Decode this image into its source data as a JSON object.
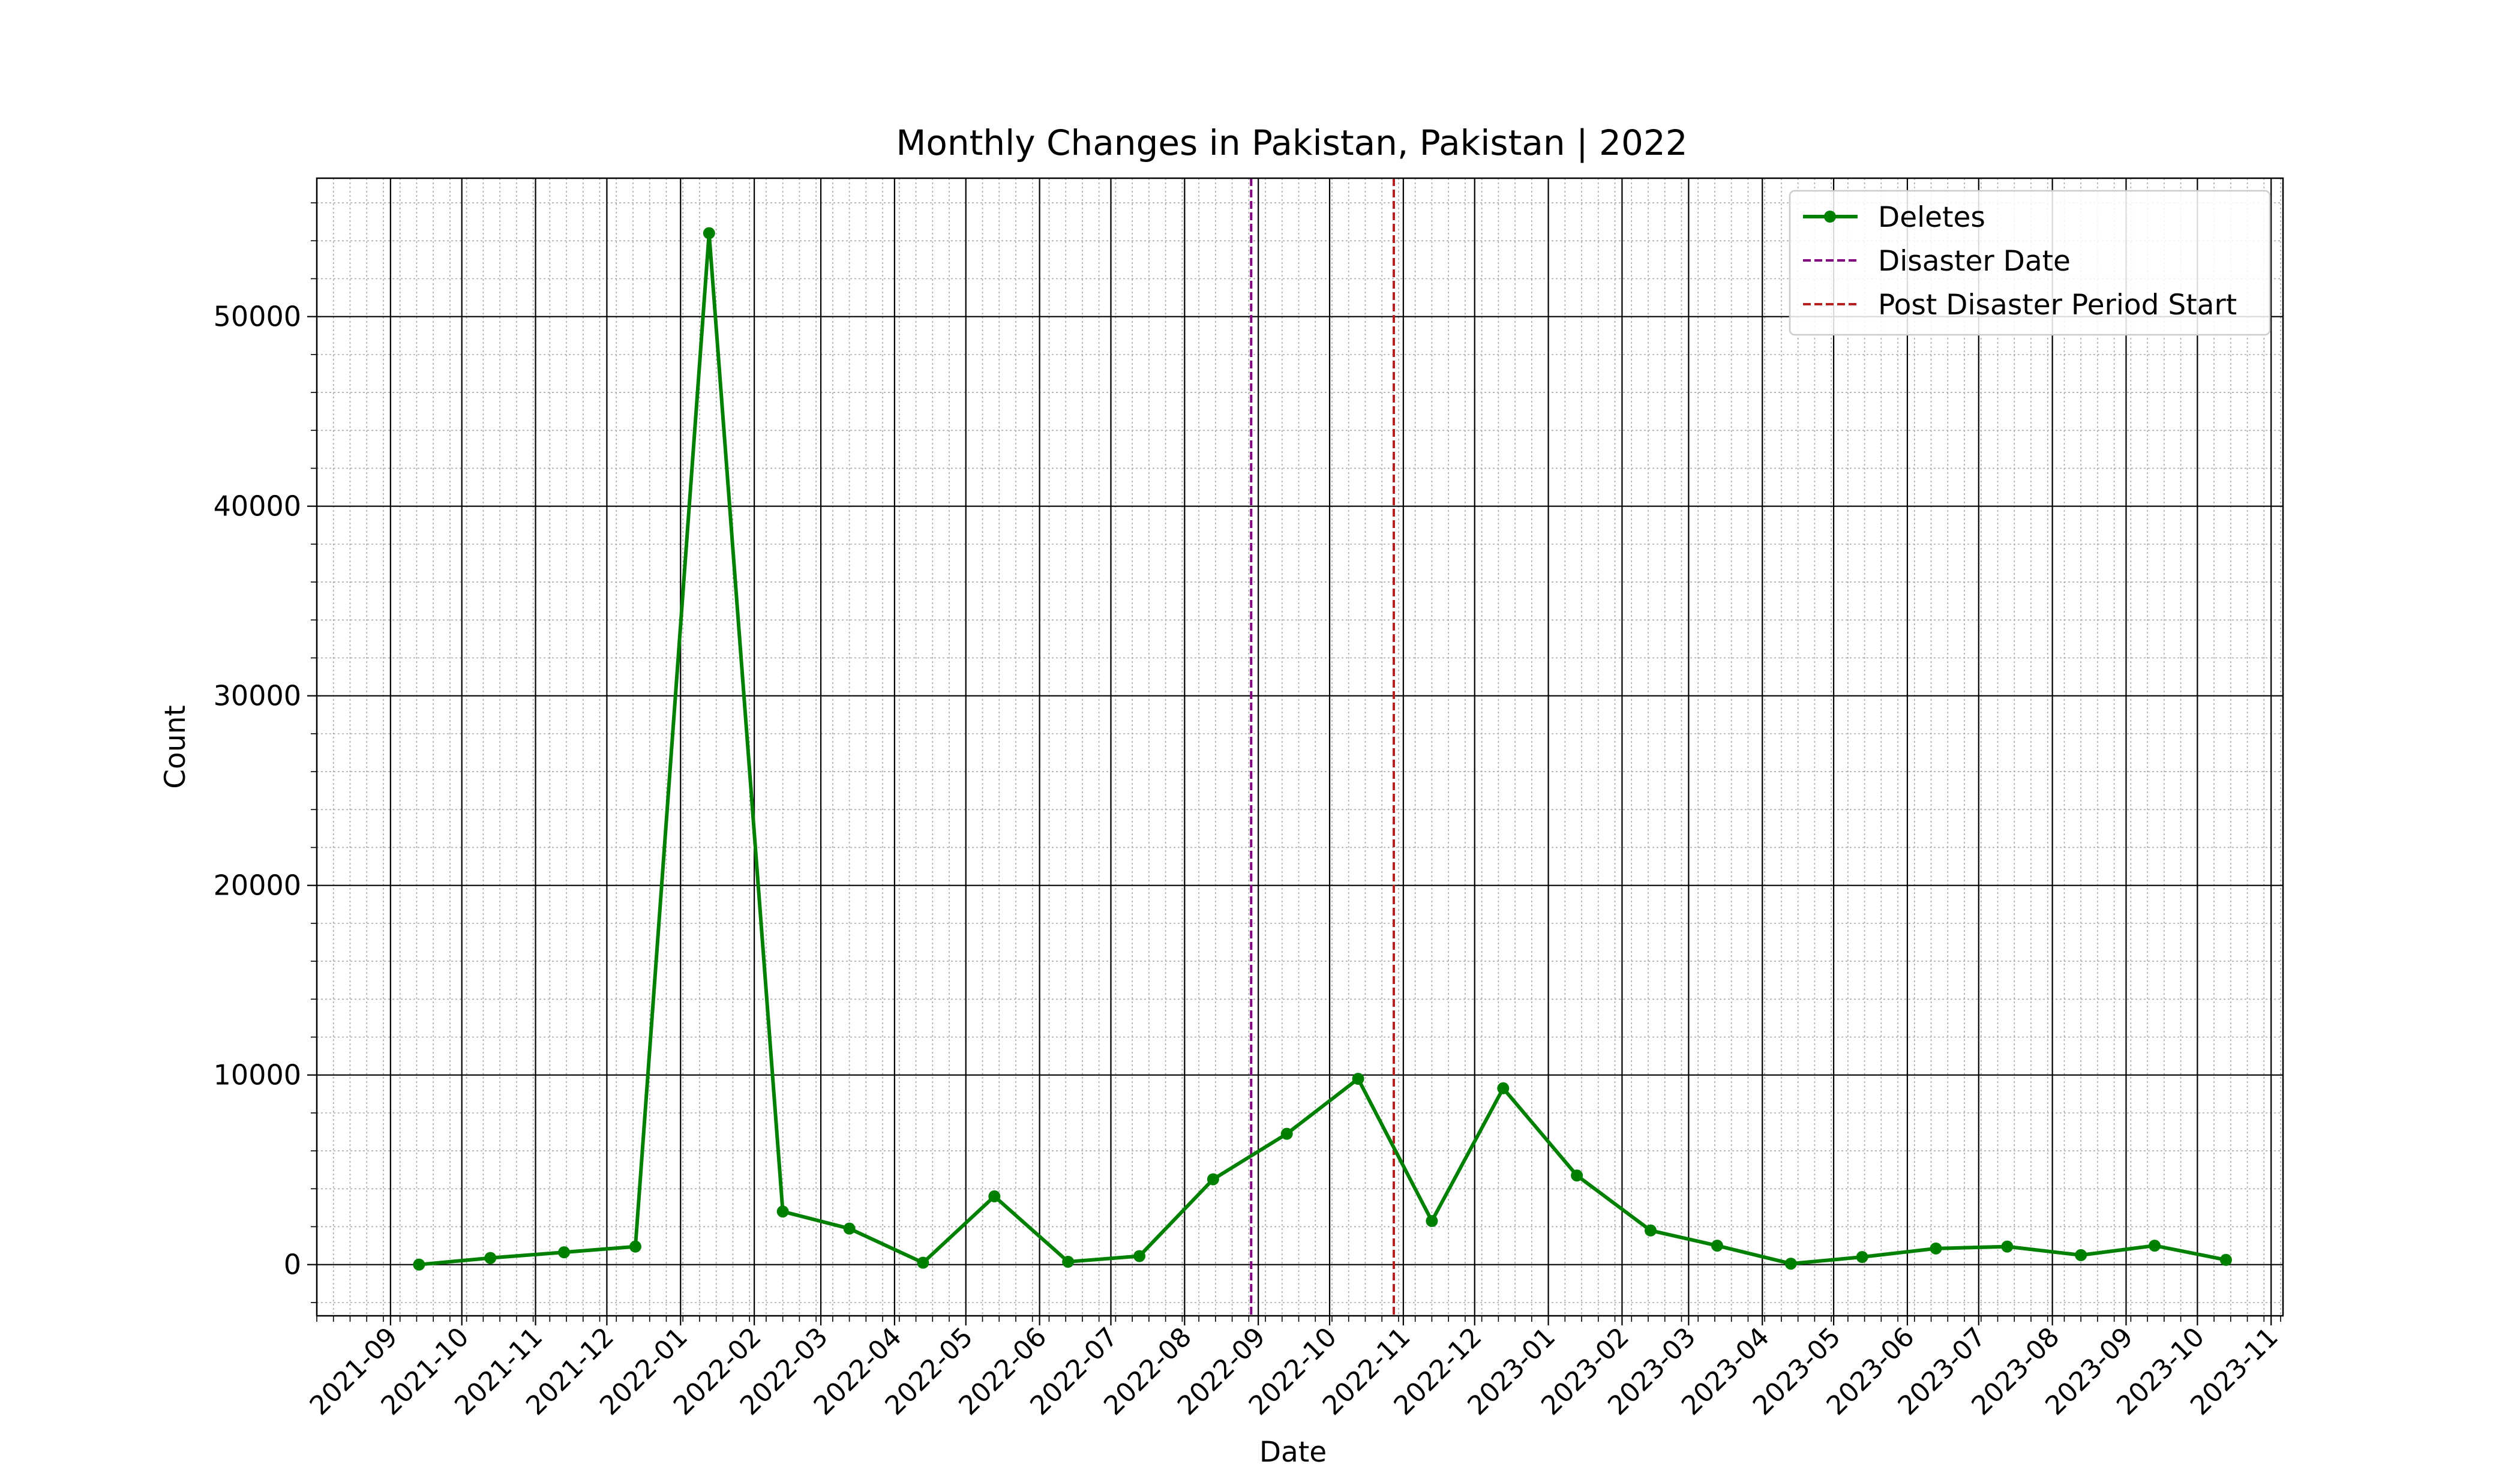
{
  "chart_data": {
    "type": "line",
    "title": "Monthly Changes in Pakistan, Pakistan | 2022",
    "xlabel": "Date",
    "ylabel": "Count",
    "x_axis_type": "date",
    "xlim": [
      "2021-08-01",
      "2023-11-06"
    ],
    "ylim": [
      -2700,
      57300
    ],
    "x_ticks": [
      "2021-09",
      "2021-10",
      "2021-11",
      "2021-12",
      "2022-01",
      "2022-02",
      "2022-03",
      "2022-04",
      "2022-05",
      "2022-06",
      "2022-07",
      "2022-08",
      "2022-09",
      "2022-10",
      "2022-11",
      "2022-12",
      "2023-01",
      "2023-02",
      "2023-03",
      "2023-04",
      "2023-05",
      "2023-06",
      "2023-07",
      "2023-08",
      "2023-09",
      "2023-10",
      "2023-11"
    ],
    "y_ticks": [
      0,
      10000,
      20000,
      30000,
      40000,
      50000
    ],
    "grid": "major and minor",
    "legend_position": "top-right",
    "series": [
      {
        "name": "Deletes",
        "color": "#008000",
        "marker": "circle",
        "x": [
          "2021-09-13",
          "2021-10-13",
          "2021-11-13",
          "2021-12-13",
          "2022-01-13",
          "2022-02-13",
          "2022-03-13",
          "2022-04-13",
          "2022-05-13",
          "2022-06-13",
          "2022-07-13",
          "2022-08-13",
          "2022-09-13",
          "2022-10-13",
          "2022-11-13",
          "2022-12-13",
          "2023-01-13",
          "2023-02-13",
          "2023-03-13",
          "2023-04-13",
          "2023-05-13",
          "2023-06-13",
          "2023-07-13",
          "2023-08-13",
          "2023-09-13",
          "2023-10-13"
        ],
        "values": [
          0,
          350,
          650,
          950,
          54400,
          2800,
          1900,
          100,
          3600,
          150,
          450,
          4500,
          6900,
          9800,
          2300,
          9300,
          4700,
          1800,
          1000,
          50,
          400,
          850,
          950,
          500,
          1000,
          250
        ]
      }
    ],
    "vlines": [
      {
        "name": "Disaster Date",
        "x": "2022-08-29",
        "color": "#800080",
        "style": "dashed"
      },
      {
        "name": "Post Disaster Period Start",
        "x": "2022-10-28",
        "color": "#b22222",
        "style": "dashed"
      }
    ]
  }
}
